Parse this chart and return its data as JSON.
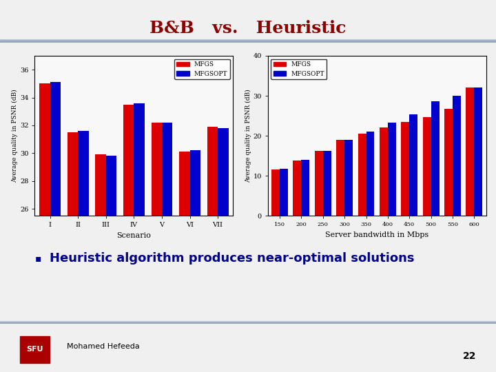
{
  "title": "B&B   vs.   Heuristic",
  "title_color": "#8B0000",
  "title_fontsize": 18,
  "bg_color": "#F0F0F0",
  "header_line_color": "#7799BB",
  "left_chart": {
    "categories": [
      "I",
      "II",
      "III",
      "IV",
      "V",
      "VI",
      "VII"
    ],
    "mfgs": [
      35.0,
      31.5,
      29.9,
      33.5,
      32.2,
      30.1,
      31.9
    ],
    "mfgsopt": [
      35.1,
      31.6,
      29.8,
      33.6,
      32.2,
      30.2,
      31.8
    ],
    "ylabel": "Average quality in PSNR (dB)",
    "xlabel": "Scenario",
    "ylim": [
      25.5,
      37
    ],
    "yticks": [
      26,
      28,
      30,
      32,
      34,
      36
    ]
  },
  "right_chart": {
    "categories": [
      "150",
      "200",
      "250",
      "300",
      "350",
      "400",
      "450",
      "500",
      "550",
      "600"
    ],
    "mfgs": [
      11.5,
      13.8,
      16.2,
      19.0,
      20.5,
      22.0,
      23.5,
      24.7,
      26.7,
      32.0
    ],
    "mfgsopt": [
      11.7,
      14.0,
      16.3,
      19.0,
      21.0,
      23.3,
      25.4,
      28.7,
      30.0,
      32.0
    ],
    "ylabel": "Average quality in PSNR (dB)",
    "xlabel": "Server bandwidth in Mbps",
    "ylim": [
      0,
      40
    ],
    "yticks": [
      0,
      10,
      20,
      30,
      40
    ]
  },
  "mfgs_color": "#DD0000",
  "mfgsopt_color": "#0000CC",
  "legend_labels": [
    "MFGS",
    "MFGSOPT"
  ],
  "bullet_text": "Heuristic algorithm produces near-optimal solutions",
  "bullet_color": "#00008B",
  "bullet_fontsize": 13,
  "footer_text": "Mohamed Hefeeda",
  "page_number": "22",
  "sfu_color": "#AA0000"
}
